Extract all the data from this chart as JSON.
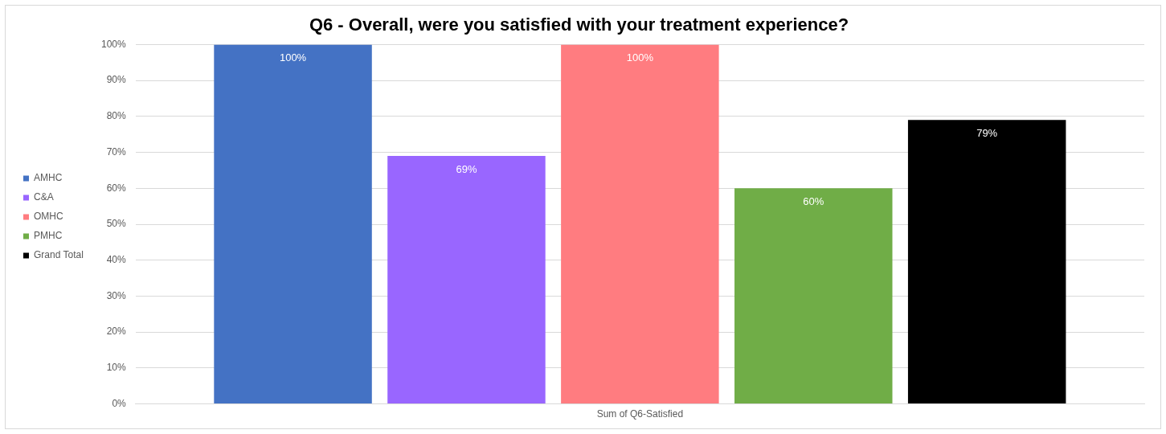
{
  "chart_data": {
    "type": "bar",
    "title": "Q6 - Overall, were you satisfied with your treatment experience?",
    "categories": [
      "Sum of Q6-Satisfied"
    ],
    "series": [
      {
        "name": "AMHC",
        "color": "#4472c4",
        "values": [
          100
        ],
        "value_labels": [
          "100%"
        ]
      },
      {
        "name": "C&A",
        "color": "#9966ff",
        "values": [
          69
        ],
        "value_labels": [
          "69%"
        ]
      },
      {
        "name": "OMHC",
        "color": "#ff7c80",
        "values": [
          100
        ],
        "value_labels": [
          "100%"
        ]
      },
      {
        "name": "PMHC",
        "color": "#70ad47",
        "values": [
          60
        ],
        "value_labels": [
          "60%"
        ]
      },
      {
        "name": "Grand Total",
        "color": "#000000",
        "values": [
          79
        ],
        "value_labels": [
          "79%"
        ]
      }
    ],
    "ylim": [
      0,
      100
    ],
    "yticks": [
      {
        "value": 0,
        "label": "0%"
      },
      {
        "value": 10,
        "label": "10%"
      },
      {
        "value": 20,
        "label": "20%"
      },
      {
        "value": 30,
        "label": "30%"
      },
      {
        "value": 40,
        "label": "40%"
      },
      {
        "value": 50,
        "label": "50%"
      },
      {
        "value": 60,
        "label": "60%"
      },
      {
        "value": 70,
        "label": "70%"
      },
      {
        "value": 80,
        "label": "80%"
      },
      {
        "value": 90,
        "label": "90%"
      },
      {
        "value": 100,
        "label": "100%"
      }
    ],
    "grid": "y",
    "legend": "left"
  }
}
